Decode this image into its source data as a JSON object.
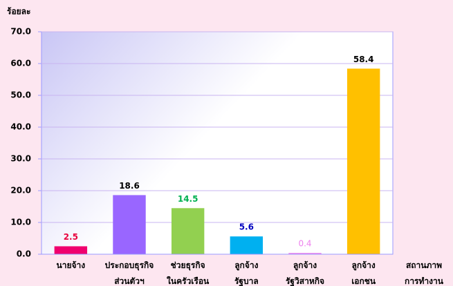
{
  "chart_data": {
    "type": "bar",
    "y_label": "ร้อยละ",
    "x_label": "สถานภาพ\nการทำงาน",
    "categories": [
      "นายจ้าง",
      "ประกอบธุรกิจ\nส่วนตัวฯ",
      "ช่วยธุรกิจ\nในครัวเรือน",
      "ลูกจ้าง\nรัฐบาล",
      "ลูกจ้าง\nรัฐวิสาหกิจ",
      "ลูกจ้าง\nเอกชน"
    ],
    "values": [
      2.5,
      18.6,
      14.5,
      5.6,
      0.4,
      58.4
    ],
    "colors": [
      "#f0006e",
      "#9966ff",
      "#92d050",
      "#00b0f0",
      "#ee82ee",
      "#ffc000"
    ],
    "label_colors": [
      "#e8003c",
      "#000000",
      "#00b050",
      "#0000c0",
      "#ee82ee",
      "#000000"
    ],
    "ylim": [
      0,
      70
    ],
    "yticks": [
      {
        "value": 0,
        "label": "0.0"
      },
      {
        "value": 10,
        "label": "10.0"
      },
      {
        "value": 20,
        "label": "20.0"
      },
      {
        "value": 30,
        "label": "30.0"
      },
      {
        "value": 40,
        "label": "40.0"
      },
      {
        "value": 50,
        "label": "50.0"
      },
      {
        "value": 60,
        "label": "60.0"
      },
      {
        "value": 70,
        "label": "70.0"
      }
    ],
    "grid": true
  }
}
